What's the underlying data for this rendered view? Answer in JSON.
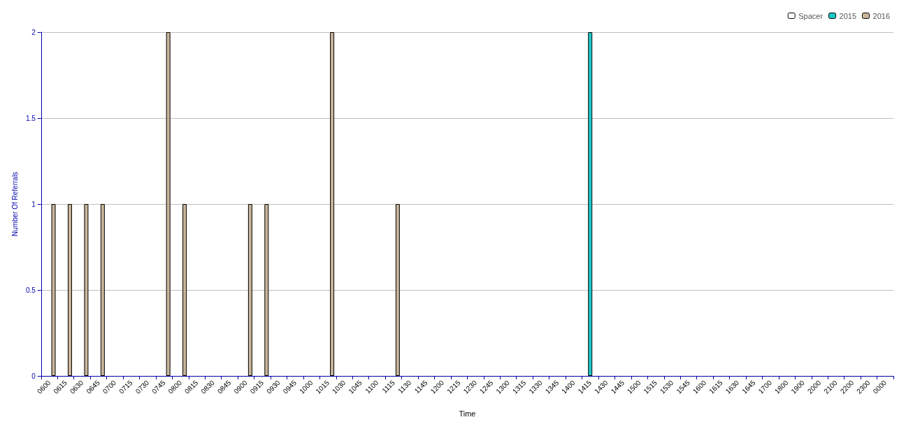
{
  "chart_data": {
    "type": "bar",
    "xlabel": "Time",
    "ylabel": "Number Of Referrals",
    "categories": [
      "0600",
      "0615",
      "0630",
      "0645",
      "0700",
      "0715",
      "0730",
      "0745",
      "0800",
      "0815",
      "0830",
      "0845",
      "0900",
      "0915",
      "0930",
      "0945",
      "1000",
      "1015",
      "1030",
      "1045",
      "1100",
      "1115",
      "1130",
      "1145",
      "1200",
      "1215",
      "1230",
      "1245",
      "1300",
      "1315",
      "1330",
      "1345",
      "1400",
      "1415",
      "1430",
      "1445",
      "1500",
      "1515",
      "1530",
      "1545",
      "1600",
      "1615",
      "1630",
      "1645",
      "1700",
      "1800",
      "1900",
      "2000",
      "2100",
      "2200",
      "2300",
      "0000"
    ],
    "series": [
      {
        "name": "Spacer",
        "color": "#ffffff",
        "values": [
          0,
          0,
          0,
          0,
          0,
          0,
          0,
          0,
          0,
          0,
          0,
          0,
          0,
          0,
          0,
          0,
          0,
          0,
          0,
          0,
          0,
          0,
          0,
          0,
          0,
          0,
          0,
          0,
          0,
          0,
          0,
          0,
          0,
          0,
          0,
          0,
          0,
          0,
          0,
          0,
          0,
          0,
          0,
          0,
          0,
          0,
          0,
          0,
          0,
          0,
          0,
          0
        ]
      },
      {
        "name": "2015",
        "color": "#1ec8c8",
        "values": [
          0,
          0,
          0,
          0,
          0,
          0,
          0,
          0,
          0,
          0,
          0,
          0,
          0,
          0,
          0,
          0,
          0,
          0,
          0,
          0,
          0,
          0,
          0,
          0,
          0,
          0,
          0,
          0,
          0,
          0,
          0,
          0,
          0,
          2,
          0,
          0,
          0,
          0,
          0,
          0,
          0,
          0,
          0,
          0,
          0,
          0,
          0,
          0,
          0,
          0,
          0,
          0
        ]
      },
      {
        "name": "2016",
        "color": "#c8b49a",
        "values": [
          1,
          1,
          1,
          1,
          0,
          0,
          0,
          2,
          1,
          0,
          0,
          0,
          1,
          1,
          0,
          0,
          0,
          2,
          0,
          0,
          0,
          1,
          0,
          0,
          0,
          0,
          0,
          0,
          0,
          0,
          0,
          0,
          0,
          0,
          0,
          0,
          0,
          0,
          0,
          0,
          0,
          0,
          0,
          0,
          0,
          0,
          0,
          0,
          0,
          0,
          0,
          0
        ]
      }
    ],
    "ylim": [
      0,
      2
    ],
    "yticks": [
      0,
      0.5,
      1,
      1.5,
      2
    ],
    "grid": "y",
    "legend": "top right"
  }
}
